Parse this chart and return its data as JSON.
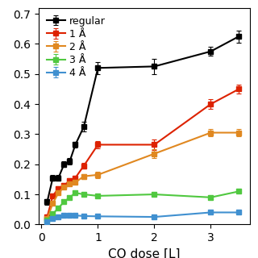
{
  "series": {
    "regular": {
      "color": "#000000",
      "x": [
        0.1,
        0.2,
        0.3,
        0.4,
        0.5,
        0.6,
        0.75,
        1.0,
        2.0,
        3.0,
        3.5
      ],
      "y": [
        0.075,
        0.155,
        0.155,
        0.2,
        0.21,
        0.265,
        0.325,
        0.52,
        0.525,
        0.575,
        0.625
      ],
      "yerr": [
        0.01,
        0.01,
        0.01,
        0.01,
        0.01,
        0.01,
        0.015,
        0.02,
        0.025,
        0.015,
        0.02
      ]
    },
    "1 Å": {
      "color": "#dd2200",
      "x": [
        0.1,
        0.2,
        0.3,
        0.4,
        0.5,
        0.6,
        0.75,
        1.0,
        2.0,
        3.0,
        3.5
      ],
      "y": [
        0.025,
        0.095,
        0.12,
        0.13,
        0.145,
        0.155,
        0.195,
        0.265,
        0.265,
        0.4,
        0.45
      ],
      "yerr": [
        0.008,
        0.008,
        0.008,
        0.008,
        0.008,
        0.008,
        0.01,
        0.012,
        0.018,
        0.015,
        0.015
      ]
    },
    "2 Å": {
      "color": "#e08820",
      "x": [
        0.1,
        0.2,
        0.3,
        0.4,
        0.5,
        0.6,
        0.75,
        1.0,
        2.0,
        3.0,
        3.5
      ],
      "y": [
        0.02,
        0.07,
        0.105,
        0.125,
        0.135,
        0.14,
        0.16,
        0.165,
        0.235,
        0.305,
        0.305
      ],
      "yerr": [
        0.006,
        0.006,
        0.006,
        0.006,
        0.006,
        0.006,
        0.008,
        0.01,
        0.015,
        0.012,
        0.012
      ]
    },
    "3 Å": {
      "color": "#50c840",
      "x": [
        0.1,
        0.2,
        0.3,
        0.4,
        0.5,
        0.6,
        0.75,
        1.0,
        2.0,
        3.0,
        3.5
      ],
      "y": [
        0.015,
        0.035,
        0.055,
        0.075,
        0.09,
        0.105,
        0.1,
        0.095,
        0.1,
        0.09,
        0.11
      ],
      "yerr": [
        0.004,
        0.004,
        0.004,
        0.004,
        0.004,
        0.005,
        0.005,
        0.005,
        0.005,
        0.005,
        0.005
      ]
    },
    "4 Å": {
      "color": "#4090d0",
      "x": [
        0.1,
        0.2,
        0.3,
        0.4,
        0.5,
        0.6,
        0.75,
        1.0,
        2.0,
        3.0,
        3.5
      ],
      "y": [
        0.01,
        0.02,
        0.025,
        0.03,
        0.03,
        0.03,
        0.028,
        0.027,
        0.025,
        0.04,
        0.04
      ],
      "yerr": [
        0.003,
        0.003,
        0.003,
        0.003,
        0.003,
        0.003,
        0.003,
        0.005,
        0.005,
        0.005,
        0.005
      ]
    }
  },
  "xlabel": "CO dose [L]",
  "ylim": [
    0.0,
    0.72
  ],
  "xlim": [
    -0.05,
    3.7
  ],
  "yticks": [
    0.0,
    0.1,
    0.2,
    0.3,
    0.4,
    0.5,
    0.6,
    0.7
  ],
  "ytick_labels": [
    "0.0",
    "0.1",
    "0.2",
    "0.3",
    "0.4",
    "0.5",
    "0.6",
    "0.7"
  ],
  "xticks": [
    0,
    1,
    2,
    3
  ],
  "bg_color": "#ffffff",
  "linewidth": 1.5,
  "markersize": 4,
  "capsize": 2,
  "elinewidth": 0.8,
  "legend_fontsize": 9,
  "tick_labelsize": 10,
  "xlabel_fontsize": 11
}
